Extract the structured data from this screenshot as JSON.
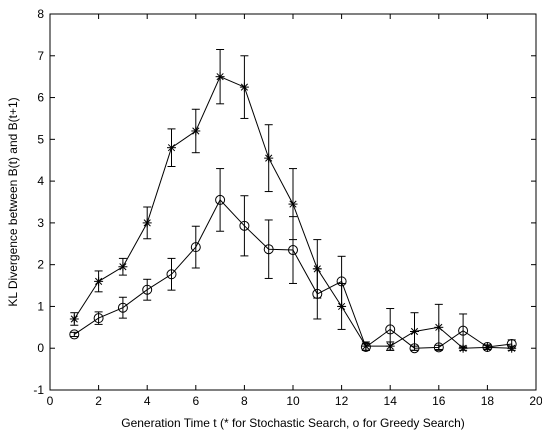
{
  "chart_data": {
    "type": "line",
    "xlabel": "Generation Time t (* for Stochastic Search, o for Greedy Search)",
    "ylabel": "KL Divergence between B(t) and B(t+1)",
    "xlim": [
      0,
      20
    ],
    "ylim": [
      -1,
      8
    ],
    "xticks": [
      0,
      2,
      4,
      6,
      8,
      10,
      12,
      14,
      16,
      18,
      20
    ],
    "yticks": [
      -1,
      0,
      1,
      2,
      3,
      4,
      5,
      6,
      7,
      8
    ],
    "grid": false,
    "legend": "none",
    "x": [
      1,
      2,
      3,
      4,
      5,
      6,
      7,
      8,
      9,
      10,
      11,
      12,
      13,
      14,
      15,
      16,
      17,
      18,
      19
    ],
    "series": [
      {
        "marker": "star",
        "values": [
          0.7,
          1.6,
          1.95,
          3.0,
          4.8,
          5.2,
          6.5,
          6.25,
          4.55,
          3.45,
          1.9,
          1.0,
          0.05,
          0.05,
          0.4,
          0.5,
          0.0,
          0.02,
          0.0
        ],
        "errors": [
          0.15,
          0.25,
          0.2,
          0.38,
          0.45,
          0.52,
          0.65,
          0.75,
          0.8,
          0.85,
          0.7,
          0.55,
          0.1,
          0.1,
          0.45,
          0.55,
          0.05,
          0.05,
          0.05
        ]
      },
      {
        "marker": "circle",
        "values": [
          0.33,
          0.72,
          0.97,
          1.4,
          1.77,
          2.42,
          3.55,
          2.93,
          2.37,
          2.35,
          1.3,
          1.6,
          0.03,
          0.45,
          0.0,
          0.02,
          0.42,
          0.03,
          0.1
        ],
        "errors": [
          0.05,
          0.15,
          0.25,
          0.25,
          0.38,
          0.5,
          0.75,
          0.72,
          0.7,
          0.8,
          0.6,
          0.6,
          0.08,
          0.5,
          0.05,
          0.05,
          0.4,
          0.05,
          0.1
        ]
      }
    ]
  }
}
